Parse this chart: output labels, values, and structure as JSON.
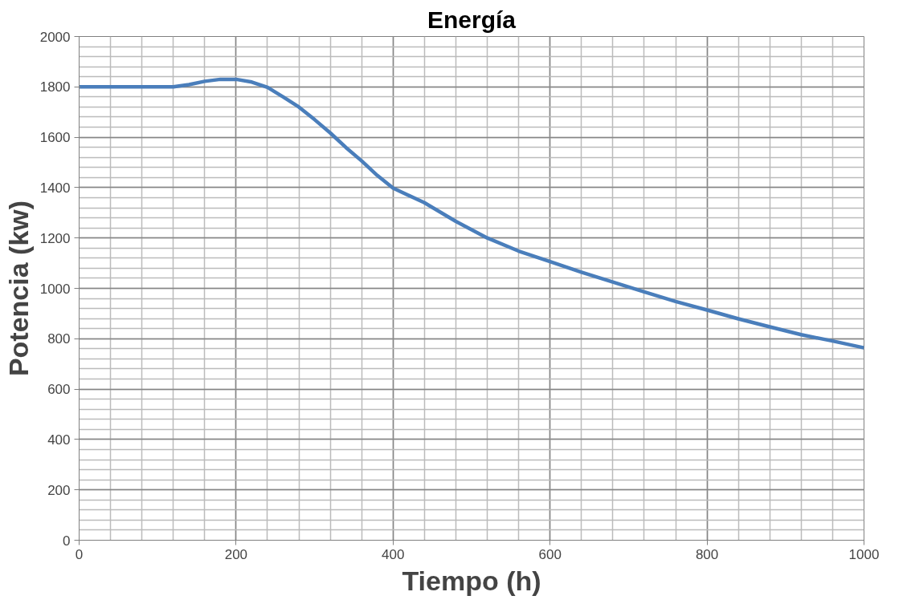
{
  "chart_data": {
    "type": "line",
    "title": "Energía",
    "xlabel": "Tiempo (h)",
    "ylabel": "Potencia (kw)",
    "series": [
      {
        "color": "#4a7ebb",
        "x": [
          0,
          40,
          80,
          120,
          140,
          160,
          180,
          200,
          220,
          240,
          260,
          280,
          300,
          320,
          340,
          360,
          380,
          400,
          440,
          480,
          520,
          560,
          600,
          640,
          680,
          720,
          760,
          800,
          840,
          880,
          920,
          960,
          1000
        ],
        "values": [
          1800,
          1800,
          1800,
          1800,
          1809,
          1822,
          1830,
          1830,
          1819,
          1798,
          1760,
          1720,
          1670,
          1617,
          1559,
          1506,
          1448,
          1398,
          1340,
          1266,
          1200,
          1148,
          1106,
          1064,
          1025,
          986,
          948,
          914,
          879,
          847,
          816,
          791,
          764
        ]
      }
    ],
    "xlim": [
      0,
      1000
    ],
    "xticks": [
      0,
      200,
      400,
      600,
      800,
      1000
    ],
    "ylim": [
      0,
      2000
    ],
    "yticks": [
      0,
      200,
      400,
      600,
      800,
      1000,
      1200,
      1400,
      1600,
      1800,
      2000
    ],
    "grid": true,
    "marker": "none",
    "line_style": "solid"
  }
}
